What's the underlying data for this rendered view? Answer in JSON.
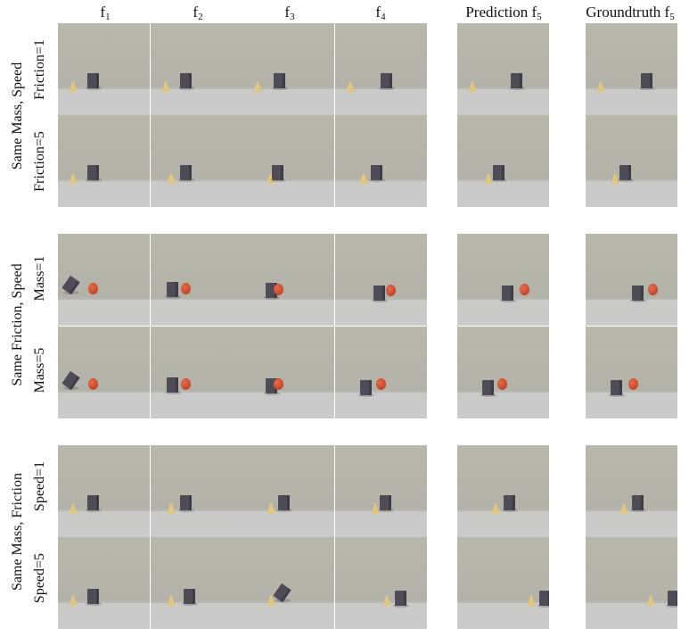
{
  "headers": {
    "f1": "f",
    "f1_sub": "1",
    "f2": "f",
    "f2_sub": "2",
    "f3": "f",
    "f3_sub": "3",
    "f4": "f",
    "f4_sub": "4",
    "pred": "Prediction f",
    "pred_sub": "5",
    "gt": "Groundtruth f",
    "gt_sub": "5"
  },
  "groups": [
    {
      "label": "Same Mass, Speed",
      "rows": [
        "Friction=1",
        "Friction=5"
      ]
    },
    {
      "label": "Same Friction, Speed",
      "rows": [
        "Mass=1",
        "Mass=5"
      ]
    },
    {
      "label": "Same Mass, Friction",
      "rows": [
        "Speed=1",
        "Speed=5"
      ]
    }
  ],
  "colors": {
    "cube": "#4e4c57",
    "cone": "#e0c77d",
    "ball": "#c9462a",
    "wall": "#b6b5ab",
    "floor": "#cbcbcb"
  }
}
